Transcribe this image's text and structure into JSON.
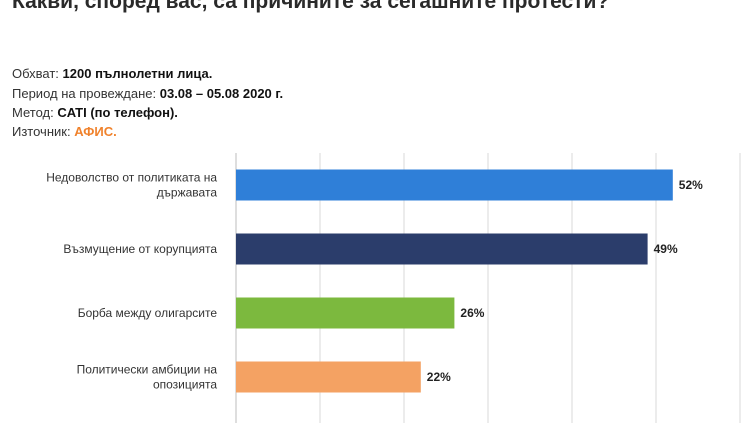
{
  "title": "Какви, според вас, са причините за сегашните протести?",
  "meta": {
    "sample_label": "Обхват:",
    "sample_value": "1200 пълнолетни лица.",
    "period_label": "Период на провеждане:",
    "period_value": "03.08 – 05.08 2020 г.",
    "method_label": "Метод:",
    "method_value": "CATI (по телефон).",
    "source_label": "Източник:",
    "source_value": "АФИС."
  },
  "colors": {
    "source_accent": "#f0822c",
    "bars": [
      "#2f7fd8",
      "#2b3d6b",
      "#7cb93e",
      "#f4a263"
    ]
  },
  "chart_data": {
    "type": "bar",
    "orientation": "horizontal",
    "categories": [
      [
        "Недоволство от политиката на",
        "държавата"
      ],
      [
        "Възмущение от корупцията"
      ],
      [
        "Борба между олигарсите"
      ],
      [
        "Политически амбиции на",
        "опозицията"
      ]
    ],
    "values": [
      52,
      49,
      26,
      22
    ],
    "value_labels": [
      "52%",
      "49%",
      "26%",
      "22%"
    ],
    "xlim": [
      0,
      60
    ],
    "grid": true,
    "axis_ticks_visible": false
  }
}
